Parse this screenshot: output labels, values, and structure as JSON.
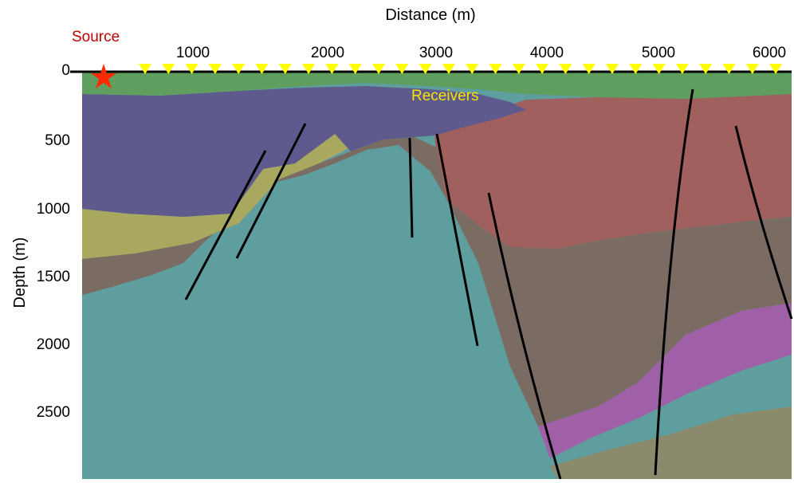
{
  "figure": {
    "x_axis_title": "Distance (m)",
    "y_axis_title": "Depth (m)",
    "source_label": "Source",
    "receivers_label": "Receivers",
    "x_ticks": [
      "1000",
      "2000",
      "3000",
      "4000",
      "5000",
      "6000"
    ],
    "y_ticks": [
      "0",
      "500",
      "1000",
      "1500",
      "2000",
      "2500"
    ],
    "receiver_count": 28
  },
  "colors": {
    "top_layer": "#5f9e5f",
    "purple_layer": "#5e5a8e",
    "red_layer": "#a0605e",
    "yellow_layer": "#a8a85e",
    "brown_layer": "#7a6c62",
    "teal_basement": "#5e9e9e",
    "magenta_layer": "#a060a8",
    "olive_layer": "#8c8a6c",
    "fault_lines": "#000000",
    "source_star": "#ff2a00",
    "receiver_marker": "#ffff00",
    "source_text": "#c00000",
    "receivers_text": "#f5e400"
  }
}
